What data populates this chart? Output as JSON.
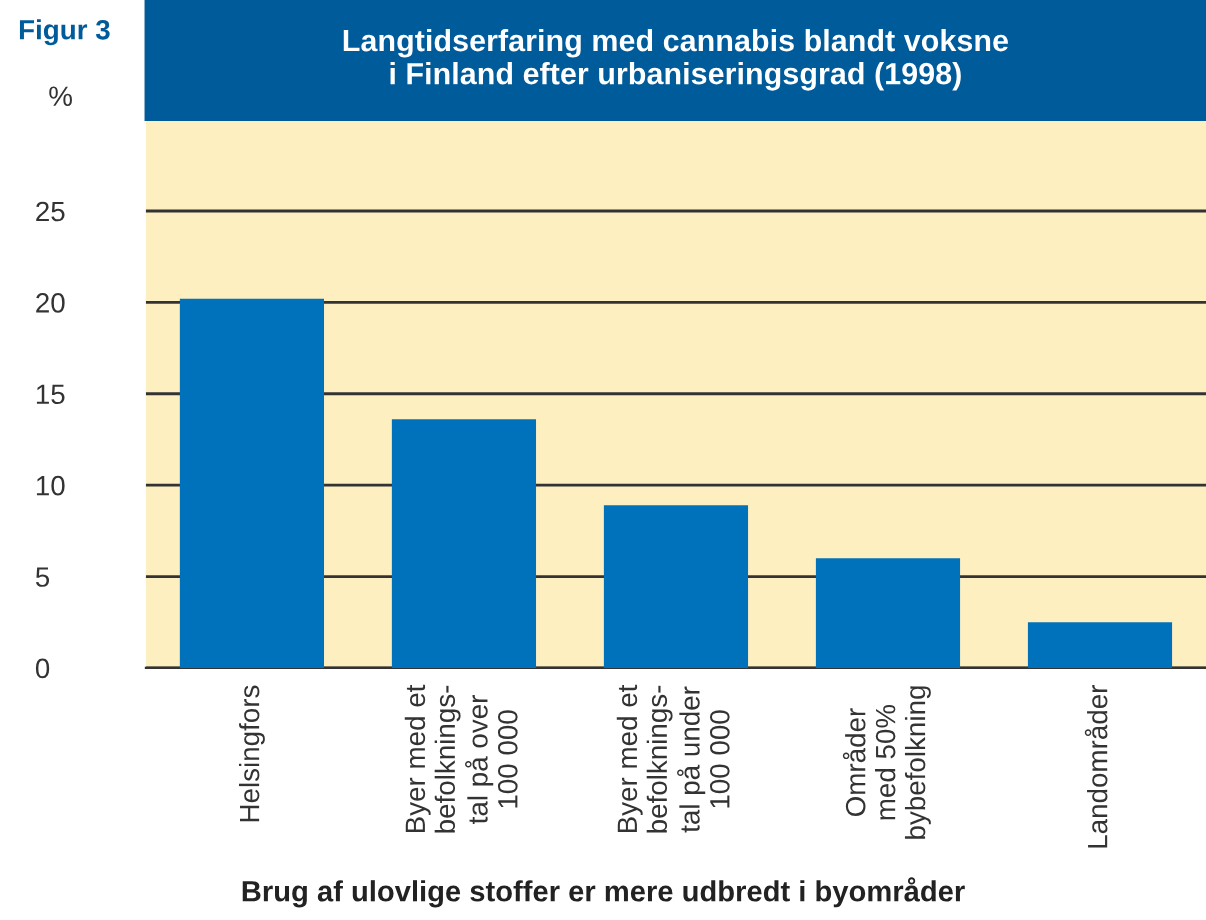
{
  "chart_data": {
    "type": "bar",
    "title": "Langtidserfaring med cannabis blandt voksne\ni Finland efter urbaniseringsgrad (1998)",
    "ylabel": "%",
    "annotations": [
      "Figur 3",
      "Brug af ulovlige stoffer er mere udbredt i byområder"
    ],
    "categories": [
      "Helsingfors",
      "Byer med et\nbefolknings-\ntal på over\n100 000",
      "Byer med et\nbefolknings-\ntal på under\n100 000",
      "Områder\nmed 50%\nbybefolkning",
      "Landområder"
    ],
    "values": [
      20.2,
      13.6,
      8.9,
      6.0,
      2.5
    ],
    "color": "#0071bb",
    "ylim": [
      0,
      30
    ],
    "yticks": [
      0,
      5,
      10,
      15,
      20,
      25
    ],
    "grid": "y",
    "legend": false
  }
}
